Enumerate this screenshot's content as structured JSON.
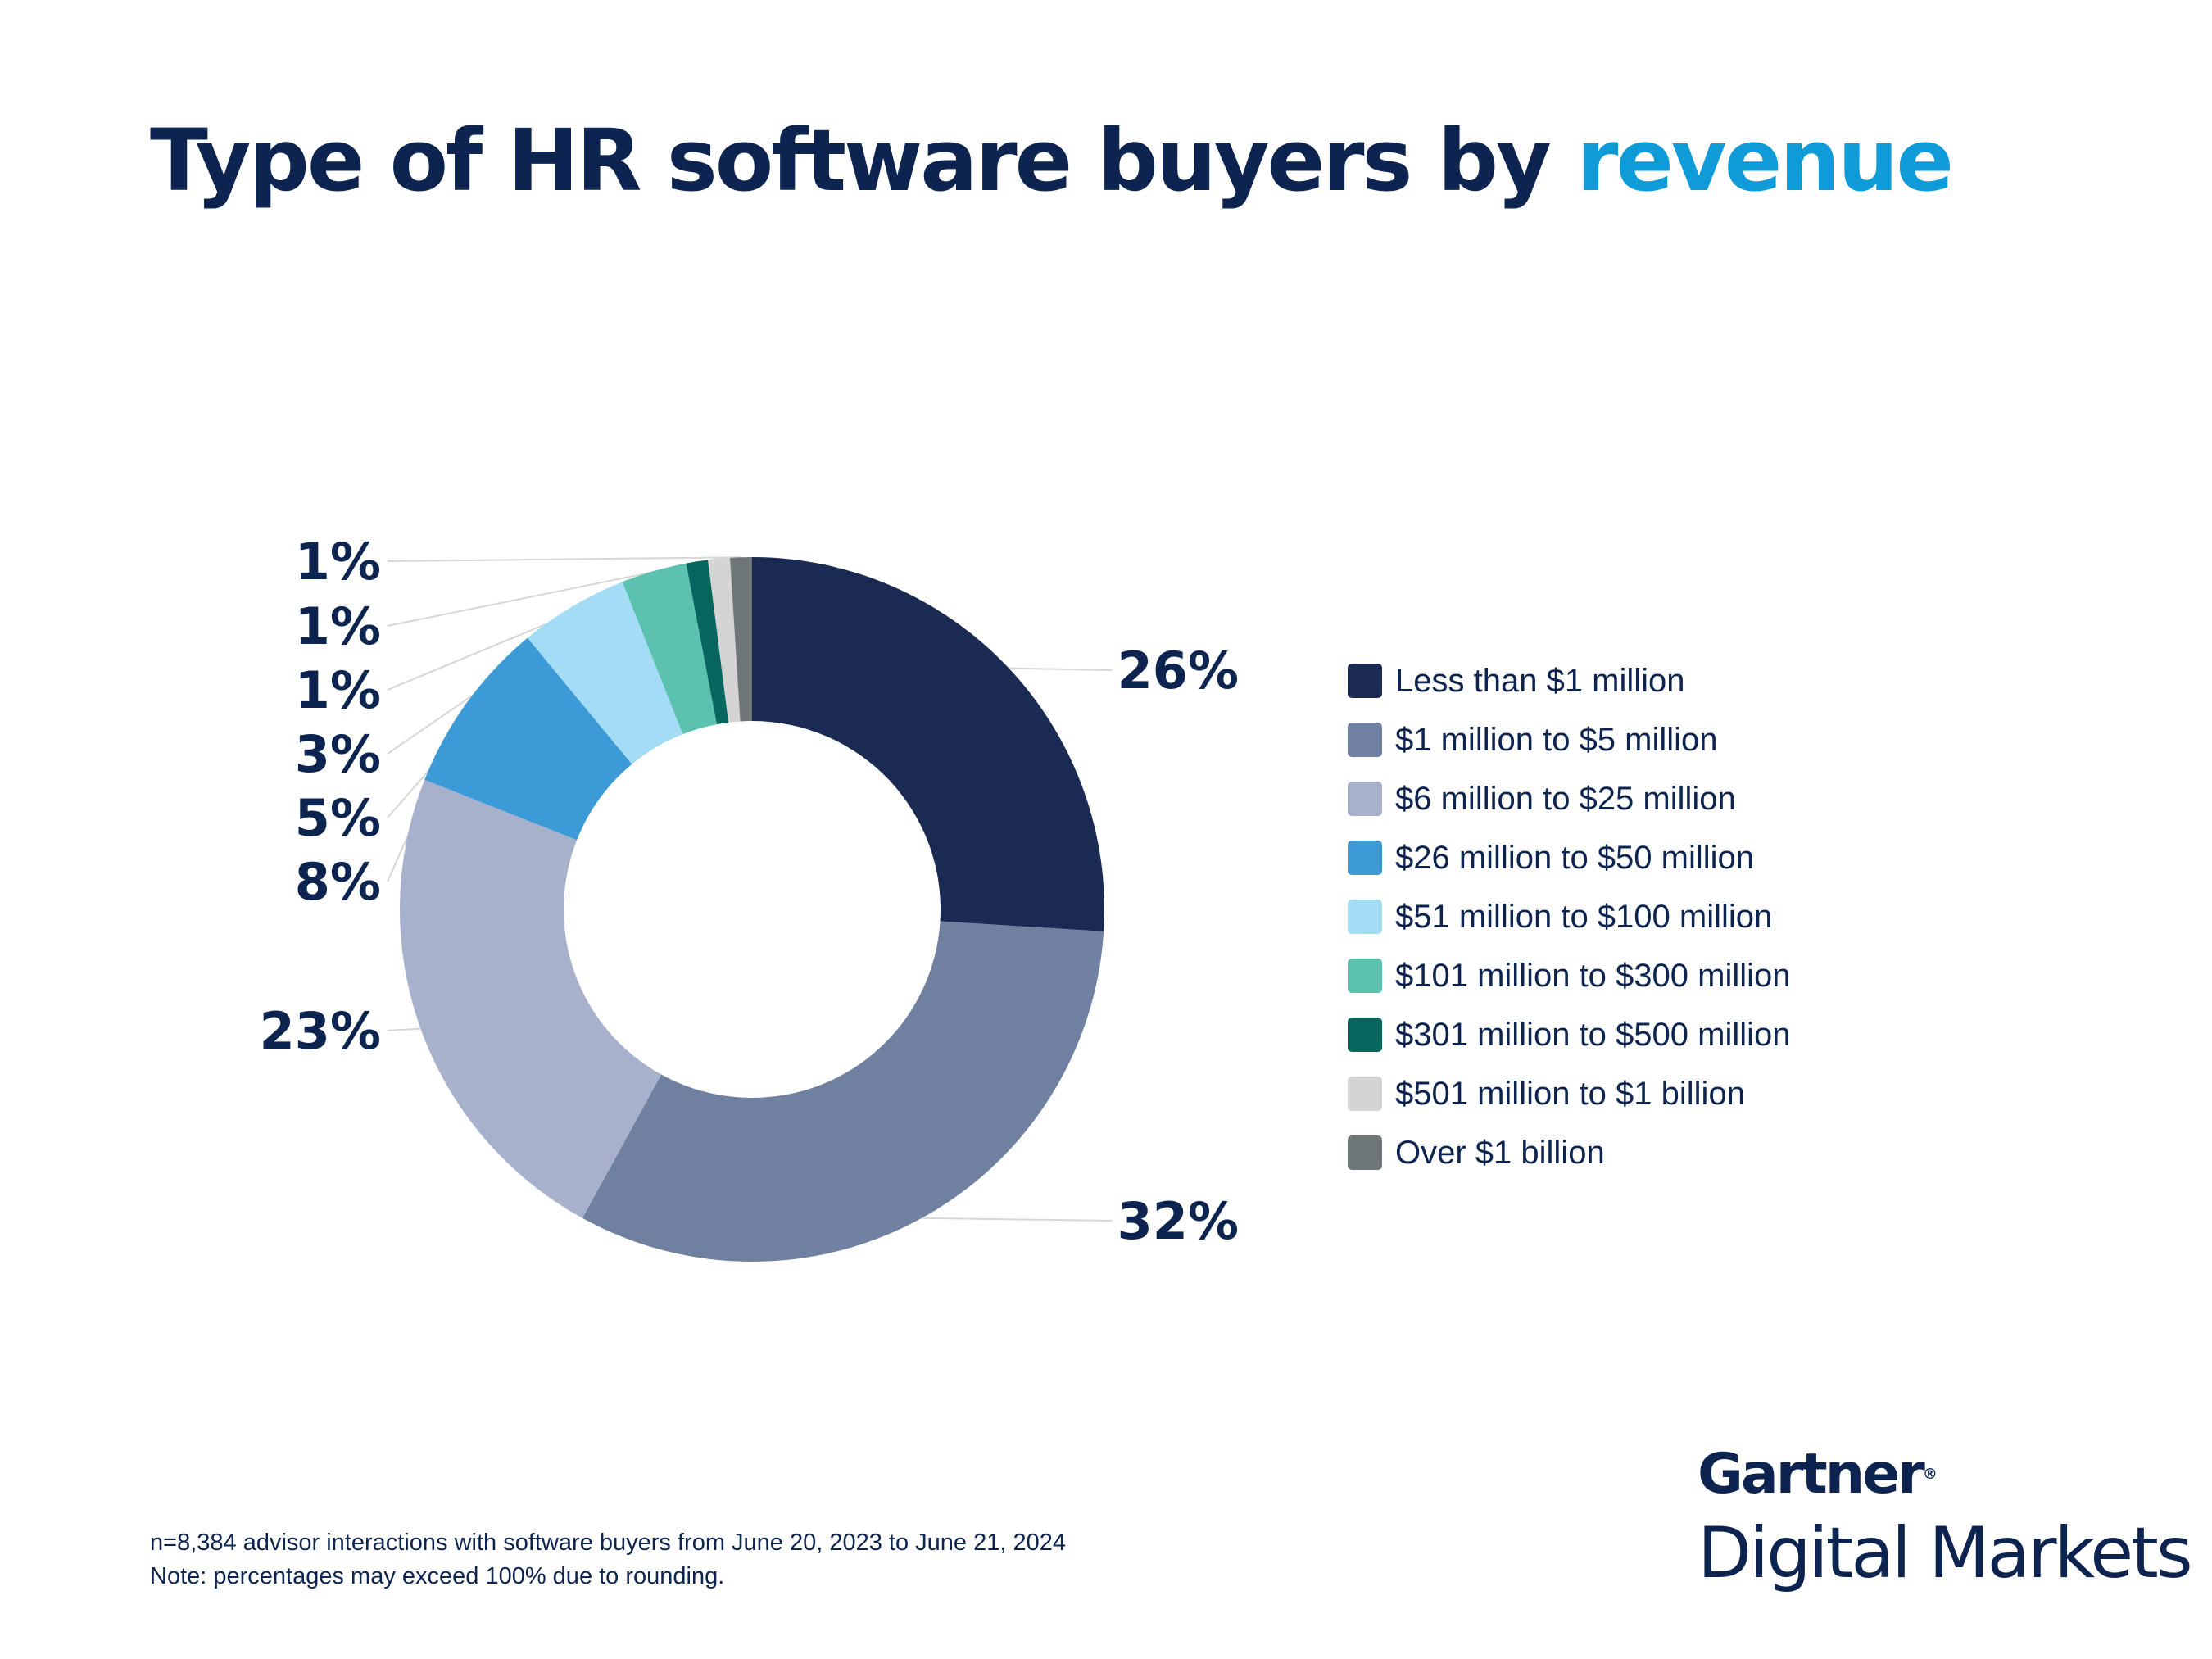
{
  "title": {
    "main": "Type of HR software buyers by",
    "highlight": "revenue"
  },
  "colors": {
    "title": "#0d2451",
    "highlight": "#0f9ad8"
  },
  "chart_data": {
    "type": "pie",
    "variant": "donut",
    "title": "Type of HR software buyers by revenue",
    "unit": "%",
    "categories": [
      "Less than $1 million",
      "$1 million to $5 million",
      "$6 million to $25 million",
      "$26 million to $50 million",
      "$51 million to $100 million",
      "$101 million to $300 million",
      "$301 million to $500 million",
      "$501 million to $1 billion",
      "Over $1 billion"
    ],
    "values": [
      26,
      32,
      23,
      8,
      5,
      3,
      1,
      1,
      1
    ],
    "labels": [
      "26%",
      "32%",
      "23%",
      "8%",
      "5%",
      "3%",
      "1%",
      "1%",
      "1%"
    ],
    "colors": [
      "#1a2a52",
      "#6f80a1",
      "#a7b1cb",
      "#3c9ad7",
      "#a5dcf5",
      "#5bc2b0",
      "#07675f",
      "#d4d4d4",
      "#6e7677"
    ],
    "legend_position": "right"
  },
  "footnote": {
    "line1": "n=8,384 advisor interactions with software buyers from June 20, 2023 to June 21, 2024",
    "line2": "Note: percentages may exceed 100% due to rounding."
  },
  "logo": {
    "brand": "Gartner",
    "registered": "®",
    "product": "Digital Markets"
  }
}
